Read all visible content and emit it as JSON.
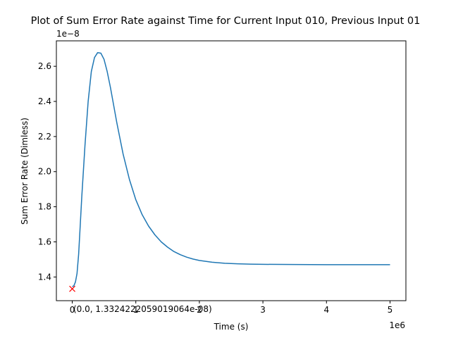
{
  "chart_data": {
    "type": "line",
    "title": "Plot of Sum Error Rate against Time for Current Input 010, Previous Input 01",
    "xlabel": "Time (s)",
    "ylabel": "Sum Error Rate (Dimless)",
    "x_offset_label": "1e6",
    "y_offset_label": "1e−8",
    "xlim": [
      -250000,
      5250000
    ],
    "ylim": [
      1.265e-08,
      2.745e-08
    ],
    "x_ticks": [
      0,
      1000000,
      2000000,
      3000000,
      4000000,
      5000000
    ],
    "x_tick_labels": [
      "0",
      "1",
      "2",
      "3",
      "4",
      "5"
    ],
    "y_ticks": [
      1.4e-08,
      1.6e-08,
      1.8e-08,
      2e-08,
      2.2e-08,
      2.4e-08,
      2.6e-08
    ],
    "y_tick_labels": [
      "1.4",
      "1.6",
      "1.8",
      "2.0",
      "2.2",
      "2.4",
      "2.6"
    ],
    "grid": false,
    "line_color": "#1f77b4",
    "marker_color": "#ff0000",
    "series": [
      {
        "x": [
          0,
          25000,
          50000,
          75000,
          100000,
          125000,
          150000,
          200000,
          250000,
          300000,
          350000,
          400000,
          450000,
          500000,
          550000,
          600000,
          650000,
          700000,
          750000,
          800000,
          900000,
          1000000,
          1100000,
          1200000,
          1300000,
          1400000,
          1500000,
          1600000,
          1700000,
          1800000,
          1900000,
          2000000,
          2200000,
          2400000,
          2600000,
          2800000,
          3000000,
          3500000,
          4000000,
          4500000,
          5000000
        ],
        "values": [
          1.345e-08,
          1.35e-08,
          1.372e-08,
          1.42e-08,
          1.53e-08,
          1.69e-08,
          1.86e-08,
          2.15e-08,
          2.4e-08,
          2.57e-08,
          2.65e-08,
          2.678e-08,
          2.675e-08,
          2.64e-08,
          2.57e-08,
          2.48e-08,
          2.38e-08,
          2.28e-08,
          2.19e-08,
          2.1e-08,
          1.955e-08,
          1.84e-08,
          1.755e-08,
          1.69e-08,
          1.64e-08,
          1.6e-08,
          1.57e-08,
          1.545e-08,
          1.527e-08,
          1.513e-08,
          1.502e-08,
          1.494e-08,
          1.484e-08,
          1.478e-08,
          1.475e-08,
          1.473e-08,
          1.472e-08,
          1.471e-08,
          1.47e-08,
          1.47e-08,
          1.47e-08
        ]
      }
    ],
    "marker": {
      "x": 0,
      "y": 1.3324222059019064e-08,
      "symbol": "x"
    },
    "annotation": {
      "text": "(0.0, 1.3324222059019064e-08)",
      "x": 0,
      "y": 1.3324222059019064e-08
    }
  }
}
